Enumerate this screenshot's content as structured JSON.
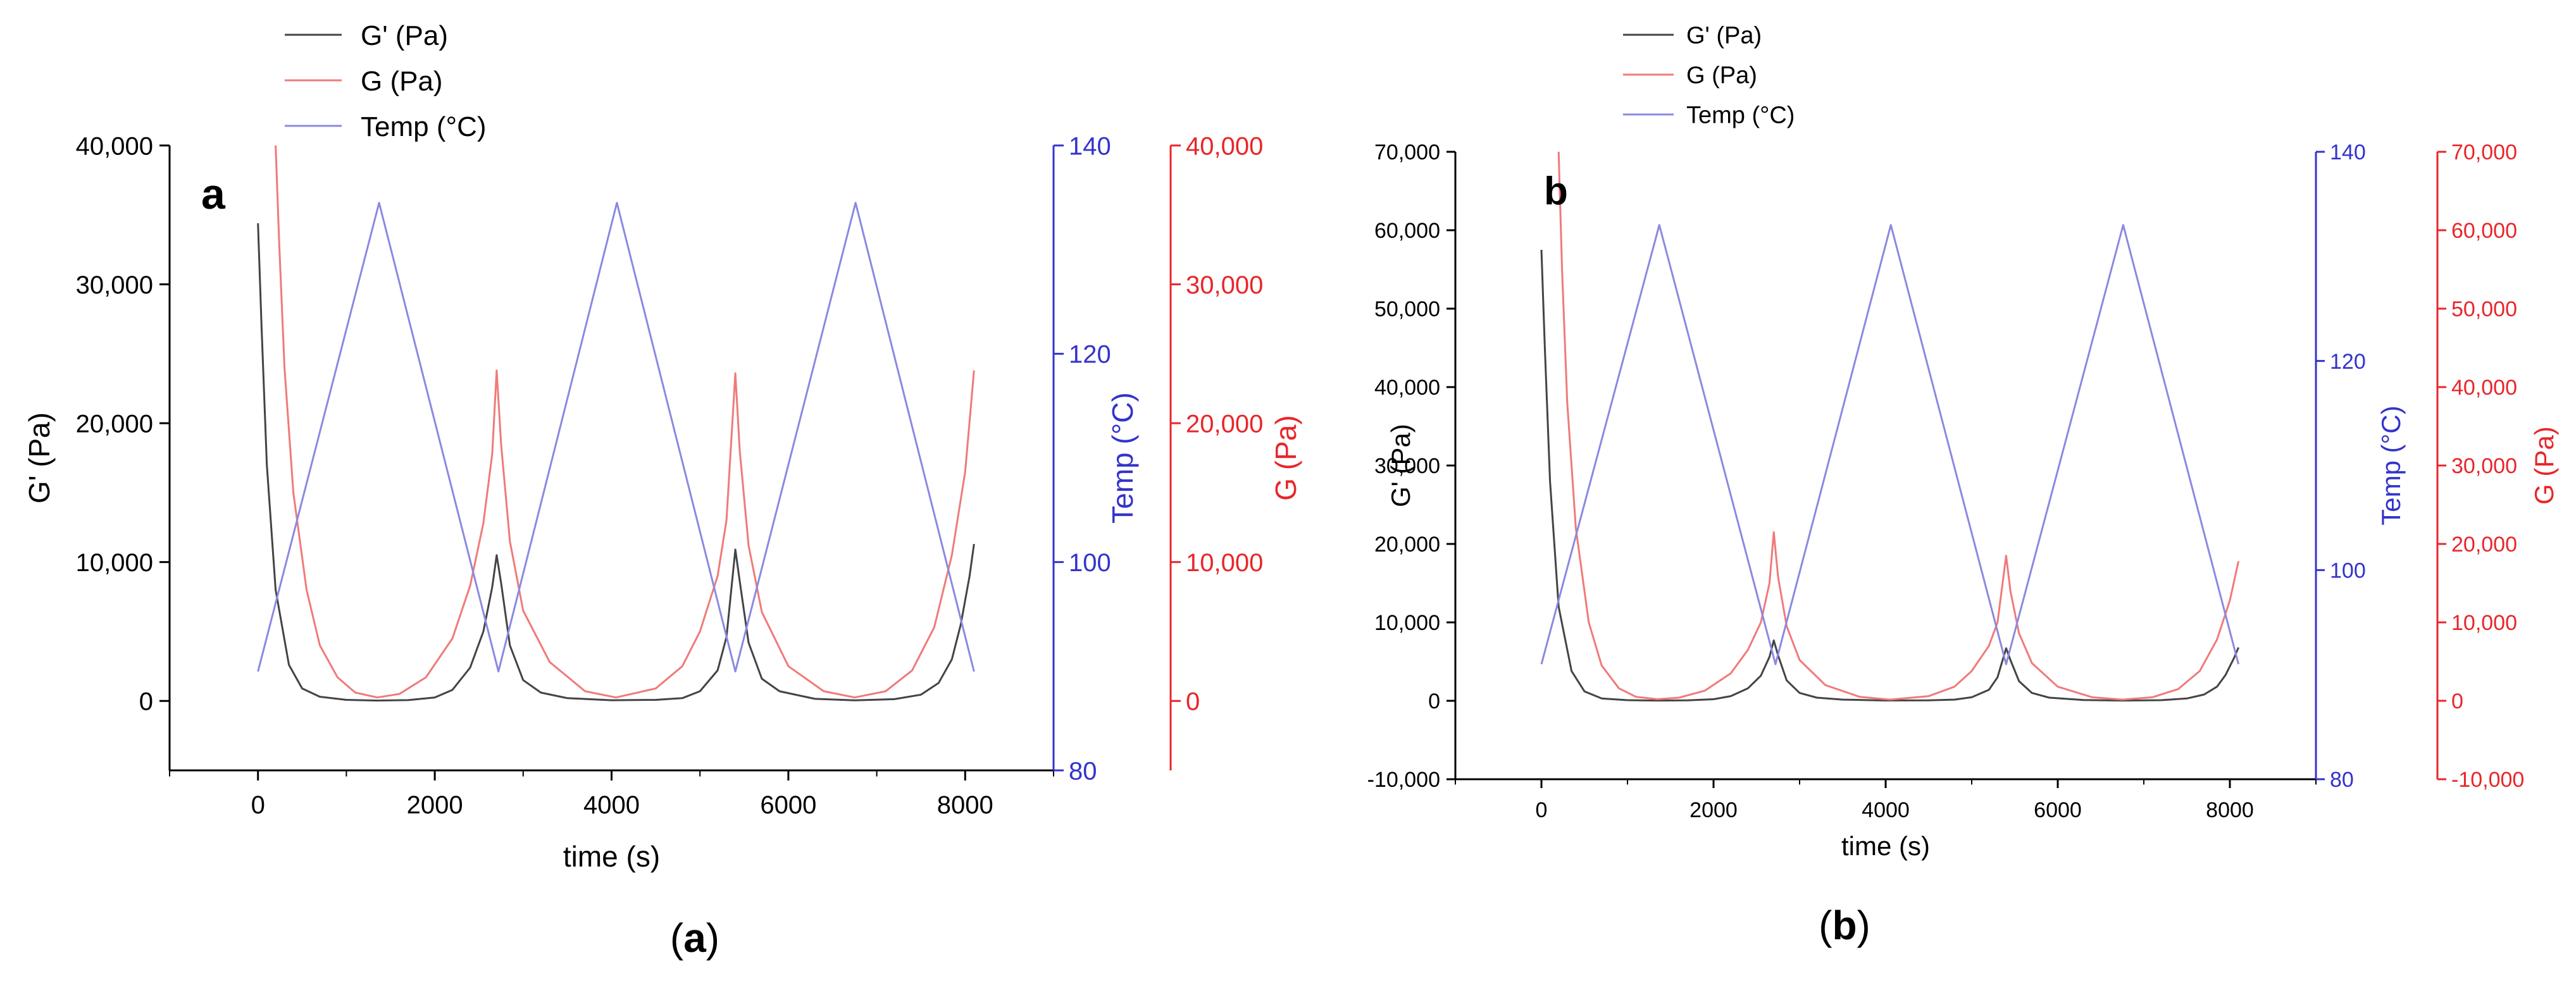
{
  "colors": {
    "g_prime": "#444444",
    "g": "#e8262a",
    "temp": "#3333cc",
    "temp_line": "#8a8ae0",
    "g_line": "#f07a7a",
    "axis_black": "#000000"
  },
  "chart_data": [
    {
      "type": "line",
      "panel_label": "a",
      "caption": "(a)",
      "legend_position": "top-left",
      "xlabel": "time (s)",
      "xlim": [
        -1000,
        9000
      ],
      "xticks": [
        "0",
        "2000",
        "4000",
        "6000",
        "8000"
      ],
      "xtick_values": [
        0,
        2000,
        4000,
        6000,
        8000
      ],
      "axes": {
        "left": {
          "label": "G' (Pa)",
          "lim": [
            -5000,
            40000
          ],
          "ticks": [
            "0",
            "10,000",
            "20,000",
            "30,000",
            "40,000"
          ],
          "tick_values": [
            0,
            10000,
            20000,
            30000,
            40000
          ]
        },
        "temp": {
          "label": "Temp (°C)",
          "lim": [
            80,
            140
          ],
          "ticks": [
            "80",
            "100",
            "120",
            "140"
          ],
          "tick_values": [
            80,
            100,
            120,
            140
          ]
        },
        "g": {
          "label": "G (Pa)",
          "lim": [
            -5000,
            40000
          ],
          "ticks": [
            "0",
            "10,000",
            "20,000",
            "30,000",
            "40,000"
          ],
          "tick_values": [
            0,
            10000,
            20000,
            30000,
            40000
          ]
        }
      },
      "series": [
        {
          "name": "G' (Pa)",
          "axis": "left",
          "color_key": "g_prime",
          "x": [
            0,
            40,
            100,
            200,
            350,
            500,
            700,
            1000,
            1350,
            1700,
            2000,
            2200,
            2400,
            2550,
            2650,
            2700,
            2750,
            2850,
            3000,
            3200,
            3500,
            4000,
            4500,
            4800,
            5000,
            5200,
            5300,
            5400,
            5450,
            5550,
            5700,
            5900,
            6300,
            6750,
            7200,
            7500,
            7700,
            7850,
            7950,
            8050,
            8100
          ],
          "values": [
            34400,
            27000,
            17000,
            8000,
            2600,
            900,
            300,
            80,
            30,
            60,
            250,
            800,
            2400,
            5000,
            8200,
            10500,
            8500,
            4000,
            1500,
            600,
            200,
            50,
            80,
            200,
            700,
            2200,
            4600,
            10900,
            8600,
            4200,
            1600,
            700,
            150,
            40,
            130,
            450,
            1300,
            3000,
            5500,
            9000,
            11300
          ]
        },
        {
          "name": "G (Pa)",
          "axis": "g",
          "color_key": "g",
          "x": [
            200,
            240,
            300,
            400,
            550,
            700,
            900,
            1100,
            1350,
            1600,
            1900,
            2200,
            2400,
            2550,
            2650,
            2700,
            2750,
            2850,
            3000,
            3300,
            3700,
            4050,
            4500,
            4800,
            5000,
            5200,
            5300,
            5400,
            5450,
            5550,
            5700,
            6000,
            6400,
            6750,
            7100,
            7400,
            7650,
            7850,
            8000,
            8100
          ],
          "values": [
            40000,
            33000,
            24000,
            15000,
            8000,
            4000,
            1700,
            600,
            250,
            500,
            1700,
            4500,
            8300,
            12800,
            17800,
            23800,
            18500,
            11500,
            6500,
            2800,
            700,
            250,
            900,
            2500,
            5000,
            9000,
            13000,
            23600,
            18000,
            11200,
            6400,
            2500,
            700,
            250,
            700,
            2200,
            5300,
            10500,
            16500,
            23800
          ]
        },
        {
          "name": "Temp (°C)",
          "axis": "temp",
          "color_key": "temp_line",
          "x": [
            0,
            1370,
            2720,
            4060,
            5400,
            6760,
            8100
          ],
          "values": [
            89.5,
            134.5,
            89.5,
            134.5,
            89.5,
            134.5,
            89.5
          ]
        }
      ]
    },
    {
      "type": "line",
      "panel_label": "b",
      "caption": "(b)",
      "legend_position": "top-left",
      "xlabel": "time (s)",
      "xlim": [
        -1000,
        9000
      ],
      "xticks": [
        "0",
        "2000",
        "4000",
        "6000",
        "8000"
      ],
      "xtick_values": [
        0,
        2000,
        4000,
        6000,
        8000
      ],
      "axes": {
        "left": {
          "label": "G' (Pa)",
          "lim": [
            -10000,
            70000
          ],
          "ticks": [
            "-10,000",
            "0",
            "10,000",
            "20,000",
            "30,000",
            "40,000",
            "50,000",
            "60,000",
            "70,000"
          ],
          "tick_values": [
            -10000,
            0,
            10000,
            20000,
            30000,
            40000,
            50000,
            60000,
            70000
          ]
        },
        "temp": {
          "label": "Temp (°C)",
          "lim": [
            80,
            140
          ],
          "ticks": [
            "80",
            "100",
            "120",
            "140"
          ],
          "tick_values": [
            80,
            100,
            120,
            140
          ]
        },
        "g": {
          "label": "G (Pa)",
          "lim": [
            -10000,
            70000
          ],
          "ticks": [
            "-10,000",
            "0",
            "10,000",
            "20,000",
            "30,000",
            "40,000",
            "50,000",
            "60,000",
            "70,000"
          ],
          "tick_values": [
            -10000,
            0,
            10000,
            20000,
            30000,
            40000,
            50000,
            60000,
            70000
          ]
        }
      },
      "series": [
        {
          "name": "G' (Pa)",
          "axis": "left",
          "color_key": "g_prime",
          "x": [
            0,
            40,
            100,
            200,
            350,
            500,
            700,
            1000,
            1350,
            1700,
            2000,
            2200,
            2400,
            2550,
            2650,
            2700,
            2750,
            2850,
            3000,
            3200,
            3500,
            4000,
            4500,
            4800,
            5000,
            5200,
            5300,
            5400,
            5450,
            5550,
            5700,
            5900,
            6300,
            6750,
            7200,
            7500,
            7700,
            7850,
            7950,
            8050,
            8100
          ],
          "values": [
            57500,
            45000,
            28000,
            12000,
            3800,
            1200,
            300,
            80,
            30,
            60,
            200,
            600,
            1600,
            3200,
            5600,
            7700,
            5800,
            2600,
            1000,
            400,
            150,
            40,
            60,
            150,
            450,
            1400,
            3000,
            6700,
            5200,
            2500,
            1000,
            400,
            100,
            30,
            80,
            300,
            800,
            1800,
            3300,
            5500,
            6800
          ]
        },
        {
          "name": "G (Pa)",
          "axis": "g",
          "color_key": "g",
          "x": [
            200,
            240,
            300,
            400,
            550,
            700,
            900,
            1100,
            1350,
            1600,
            1900,
            2200,
            2400,
            2550,
            2650,
            2700,
            2750,
            2850,
            3000,
            3300,
            3700,
            4050,
            4500,
            4800,
            5000,
            5200,
            5300,
            5400,
            5450,
            5550,
            5700,
            6000,
            6400,
            6750,
            7100,
            7400,
            7650,
            7850,
            8000,
            8100
          ],
          "values": [
            70000,
            55000,
            38000,
            22000,
            10000,
            4500,
            1600,
            500,
            200,
            400,
            1300,
            3500,
            6500,
            10000,
            15000,
            21500,
            15800,
            9500,
            5200,
            2000,
            500,
            150,
            600,
            1800,
            3800,
            7000,
            10000,
            18500,
            14000,
            8600,
            4800,
            1800,
            450,
            150,
            450,
            1500,
            3800,
            7800,
            12800,
            17800
          ]
        },
        {
          "name": "Temp (°C)",
          "axis": "temp",
          "color_key": "temp_line",
          "x": [
            0,
            1370,
            2720,
            4060,
            5400,
            6760,
            8100
          ],
          "values": [
            91,
            133,
            91,
            133,
            91,
            133,
            91
          ]
        }
      ]
    }
  ]
}
